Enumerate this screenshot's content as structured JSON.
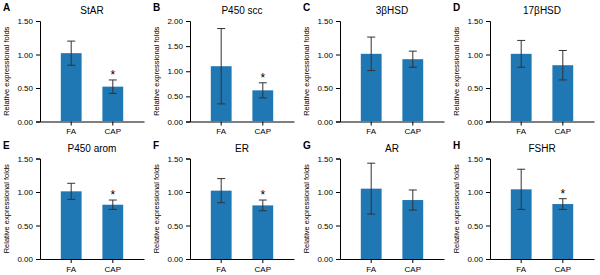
{
  "chart_data": [
    {
      "type": "bar",
      "label": "A",
      "title": "StAR",
      "ylabel": "Relative expressional folds",
      "categories": [
        "FA",
        "CAP"
      ],
      "values": [
        1.02,
        0.52
      ],
      "errors": [
        0.18,
        0.1
      ],
      "ylim": [
        0,
        1.5
      ],
      "yticks": [
        {
          "value": 0.0,
          "label": "0.00"
        },
        {
          "value": 0.5,
          "label": "0.50"
        },
        {
          "value": 1.0,
          "label": "1.00"
        },
        {
          "value": 1.5,
          "label": "1.50"
        }
      ],
      "annotations": [
        {
          "text": "*",
          "category": "CAP"
        }
      ]
    },
    {
      "type": "bar",
      "label": "B",
      "title": "P450 scc",
      "ylabel": "Relative expressional folds",
      "categories": [
        "FA",
        "CAP"
      ],
      "values": [
        1.1,
        0.62
      ],
      "errors": [
        0.75,
        0.15
      ],
      "ylim": [
        0,
        2.0
      ],
      "yticks": [
        {
          "value": 0.0,
          "label": "0.00"
        },
        {
          "value": 0.5,
          "label": "0.50"
        },
        {
          "value": 1.0,
          "label": "1.00"
        },
        {
          "value": 1.5,
          "label": "1.50"
        },
        {
          "value": 2.0,
          "label": "2.00"
        }
      ],
      "annotations": [
        {
          "text": "*",
          "category": "CAP"
        }
      ]
    },
    {
      "type": "bar",
      "label": "C",
      "title": "3βHSD",
      "ylabel": "Relative expressional folds",
      "categories": [
        "FA",
        "CAP"
      ],
      "values": [
        1.01,
        0.93
      ],
      "errors": [
        0.25,
        0.12
      ],
      "ylim": [
        0,
        1.5
      ],
      "yticks": [
        {
          "value": 0.0,
          "label": "0.00"
        },
        {
          "value": 0.5,
          "label": "0.50"
        },
        {
          "value": 1.0,
          "label": "1.00"
        },
        {
          "value": 1.5,
          "label": "1.50"
        }
      ]
    },
    {
      "type": "bar",
      "label": "D",
      "title": "17βHSD",
      "ylabel": "Relative expressional folds",
      "categories": [
        "FA",
        "CAP"
      ],
      "values": [
        1.01,
        0.84
      ],
      "errors": [
        0.2,
        0.22
      ],
      "ylim": [
        0,
        1.5
      ],
      "yticks": [
        {
          "value": 0.0,
          "label": "0.00"
        },
        {
          "value": 0.5,
          "label": "0.50"
        },
        {
          "value": 1.0,
          "label": "1.00"
        },
        {
          "value": 1.5,
          "label": "1.50"
        }
      ]
    },
    {
      "type": "bar",
      "label": "E",
      "title": "P450 arom",
      "ylabel": "Relative expressional folds",
      "categories": [
        "FA",
        "CAP"
      ],
      "values": [
        1.01,
        0.81
      ],
      "errors": [
        0.12,
        0.07
      ],
      "ylim": [
        0,
        1.5
      ],
      "yticks": [
        {
          "value": 0.0,
          "label": "0.00"
        },
        {
          "value": 0.5,
          "label": "0.50"
        },
        {
          "value": 1.0,
          "label": "1.00"
        },
        {
          "value": 1.5,
          "label": "1.50"
        }
      ],
      "annotations": [
        {
          "text": "*",
          "category": "CAP"
        }
      ]
    },
    {
      "type": "bar",
      "label": "F",
      "title": "ER",
      "ylabel": "Relative expressional folds",
      "categories": [
        "FA",
        "CAP"
      ],
      "values": [
        1.02,
        0.8
      ],
      "errors": [
        0.18,
        0.08
      ],
      "ylim": [
        0,
        1.5
      ],
      "yticks": [
        {
          "value": 0.0,
          "label": "0.00"
        },
        {
          "value": 0.5,
          "label": "0.50"
        },
        {
          "value": 1.0,
          "label": "1.00"
        },
        {
          "value": 1.5,
          "label": "1.50"
        }
      ],
      "annotations": [
        {
          "text": "*",
          "category": "CAP"
        }
      ]
    },
    {
      "type": "bar",
      "label": "G",
      "title": "AR",
      "ylabel": "Relative expressional folds",
      "categories": [
        "FA",
        "CAP"
      ],
      "values": [
        1.05,
        0.88
      ],
      "errors": [
        0.38,
        0.15
      ],
      "ylim": [
        0,
        1.5
      ],
      "yticks": [
        {
          "value": 0.0,
          "label": "0.00"
        },
        {
          "value": 0.5,
          "label": "0.50"
        },
        {
          "value": 1.0,
          "label": "1.00"
        },
        {
          "value": 1.5,
          "label": "1.50"
        }
      ]
    },
    {
      "type": "bar",
      "label": "H",
      "title": "FSHR",
      "ylabel": "Relative expressional folds",
      "categories": [
        "FA",
        "CAP"
      ],
      "values": [
        1.04,
        0.82
      ],
      "errors": [
        0.3,
        0.08
      ],
      "ylim": [
        0,
        1.5
      ],
      "yticks": [
        {
          "value": 0.0,
          "label": "0.00"
        },
        {
          "value": 0.5,
          "label": "0.50"
        },
        {
          "value": 1.0,
          "label": "1.00"
        },
        {
          "value": 1.5,
          "label": "1.50"
        }
      ],
      "annotations": [
        {
          "text": "*",
          "category": "CAP"
        }
      ]
    }
  ]
}
